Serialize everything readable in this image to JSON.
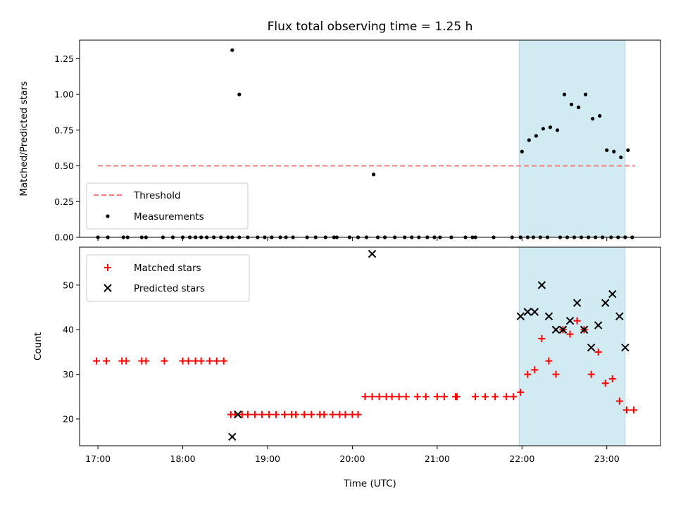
{
  "chart_data": [
    {
      "type": "scatter",
      "title": "Flux total observing time = 1.25 h",
      "ylabel": "Matched/Predicted stars",
      "xlabel": "",
      "xlim": [
        "16:47",
        "23:38"
      ],
      "ylim": [
        0,
        1.38
      ],
      "yticks": [
        0.0,
        0.25,
        0.5,
        0.75,
        1.0,
        1.25
      ],
      "ytick_labels": [
        "0.00",
        "0.25",
        "0.50",
        "0.75",
        "1.00",
        "1.25"
      ],
      "shaded_interval": [
        "21:58",
        "23:13"
      ],
      "shade_color": "#add8e6",
      "legend_position": "lower left",
      "threshold": {
        "name": "Threshold",
        "y": 0.5,
        "x_from": "17:00",
        "x_to": "23:20",
        "color": "#f08080"
      },
      "series": [
        {
          "name": "Measurements",
          "color": "#000000",
          "x": [
            "17:00",
            "17:07",
            "17:18",
            "17:21",
            "17:31",
            "17:34",
            "17:46",
            "17:53",
            "18:00",
            "18:05",
            "18:09",
            "18:13",
            "18:17",
            "18:22",
            "18:27",
            "18:32",
            "18:35",
            "18:40",
            "18:46",
            "18:53",
            "18:58",
            "19:03",
            "19:09",
            "19:13",
            "19:18",
            "19:28",
            "19:34",
            "19:41",
            "19:47",
            "19:49",
            "19:58",
            "20:04",
            "20:10",
            "20:18",
            "20:23",
            "20:30",
            "20:37",
            "20:42",
            "20:47",
            "20:53",
            "20:58",
            "21:02",
            "21:10",
            "21:20",
            "21:25",
            "21:27",
            "21:40",
            "21:53",
            "21:59",
            "22:04",
            "22:08",
            "22:13",
            "22:18",
            "22:27",
            "22:32",
            "22:37",
            "22:42",
            "22:47",
            "22:52",
            "22:57",
            "23:03",
            "23:08",
            "23:13",
            "23:18",
            "18:35",
            "18:40",
            "20:15",
            "22:00",
            "22:05",
            "22:10",
            "22:15",
            "22:20",
            "22:25",
            "22:30",
            "22:35",
            "22:40",
            "22:45",
            "22:50",
            "22:55",
            "23:00",
            "23:05",
            "23:10",
            "23:15"
          ],
          "y": [
            0,
            0,
            0,
            0,
            0,
            0,
            0,
            0,
            0,
            0,
            0,
            0,
            0,
            0,
            0,
            0,
            0,
            0,
            0,
            0,
            0,
            0,
            0,
            0,
            0,
            0,
            0,
            0,
            0,
            0,
            0,
            0,
            0,
            0,
            0,
            0,
            0,
            0,
            0,
            0,
            0,
            0,
            0,
            0,
            0,
            0,
            0,
            0,
            0,
            0,
            0,
            0,
            0,
            0,
            0,
            0,
            0,
            0,
            0,
            0,
            0,
            0,
            0,
            0,
            1.31,
            1.0,
            0.44,
            0.6,
            0.68,
            0.71,
            0.76,
            0.77,
            0.75,
            1.0,
            0.93,
            0.91,
            1.0,
            0.83,
            0.85,
            0.61,
            0.6,
            0.56,
            0.61
          ]
        }
      ]
    },
    {
      "type": "scatter",
      "title": "",
      "xlabel": "Time (UTC)",
      "ylabel": "Count",
      "xlim": [
        "16:47",
        "23:38"
      ],
      "ylim": [
        14,
        58.5
      ],
      "yticks": [
        20,
        30,
        40,
        50
      ],
      "xticks": [
        "17:00",
        "18:00",
        "19:00",
        "20:00",
        "21:00",
        "22:00",
        "23:00"
      ],
      "shaded_interval": [
        "21:58",
        "23:13"
      ],
      "shade_color": "#add8e6",
      "legend_position": "upper left",
      "series": [
        {
          "name": "Matched stars",
          "marker": "+",
          "color": "#ff0000",
          "x": [
            "16:59",
            "17:06",
            "17:17",
            "17:20",
            "17:31",
            "17:34",
            "17:47",
            "18:00",
            "18:04",
            "18:09",
            "18:13",
            "18:19",
            "18:24",
            "18:29",
            "18:34",
            "18:37",
            "18:42",
            "18:46",
            "18:51",
            "18:56",
            "19:01",
            "19:06",
            "19:12",
            "19:17",
            "19:20",
            "19:26",
            "19:31",
            "19:37",
            "19:40",
            "19:46",
            "19:51",
            "19:55",
            "20:00",
            "20:04",
            "20:09",
            "20:14",
            "20:19",
            "20:24",
            "20:28",
            "20:33",
            "20:38",
            "20:46",
            "20:52",
            "21:00",
            "21:05",
            "21:13",
            "21:14",
            "21:27",
            "21:34",
            "21:41",
            "21:49",
            "21:54",
            "21:59",
            "22:04",
            "22:09",
            "22:14",
            "22:19",
            "22:24",
            "22:29",
            "22:34",
            "22:39",
            "22:44",
            "22:49",
            "22:54",
            "22:59",
            "23:04",
            "23:09",
            "23:14",
            "23:19"
          ],
          "y": [
            33,
            33,
            33,
            33,
            33,
            33,
            33,
            33,
            33,
            33,
            33,
            33,
            33,
            33,
            21,
            21,
            21,
            21,
            21,
            21,
            21,
            21,
            21,
            21,
            21,
            21,
            21,
            21,
            21,
            21,
            21,
            21,
            21,
            21,
            25,
            25,
            25,
            25,
            25,
            25,
            25,
            25,
            25,
            25,
            25,
            25,
            25,
            25,
            25,
            25,
            25,
            25,
            26,
            30,
            31,
            38,
            33,
            30,
            40,
            39,
            42,
            40,
            30,
            35,
            28,
            29,
            24,
            22,
            22
          ]
        },
        {
          "name": "Predicted stars",
          "marker": "x",
          "color": "#000000",
          "x": [
            "18:35",
            "18:39",
            "20:14",
            "21:59",
            "22:04",
            "22:09",
            "22:14",
            "22:19",
            "22:24",
            "22:29",
            "22:34",
            "22:39",
            "22:44",
            "22:49",
            "22:54",
            "22:59",
            "23:04",
            "23:09",
            "23:13"
          ],
          "y": [
            16,
            21,
            57,
            43,
            44,
            44,
            50,
            43,
            40,
            40,
            42,
            46,
            40,
            36,
            41,
            46,
            48,
            43,
            36
          ]
        }
      ]
    }
  ]
}
